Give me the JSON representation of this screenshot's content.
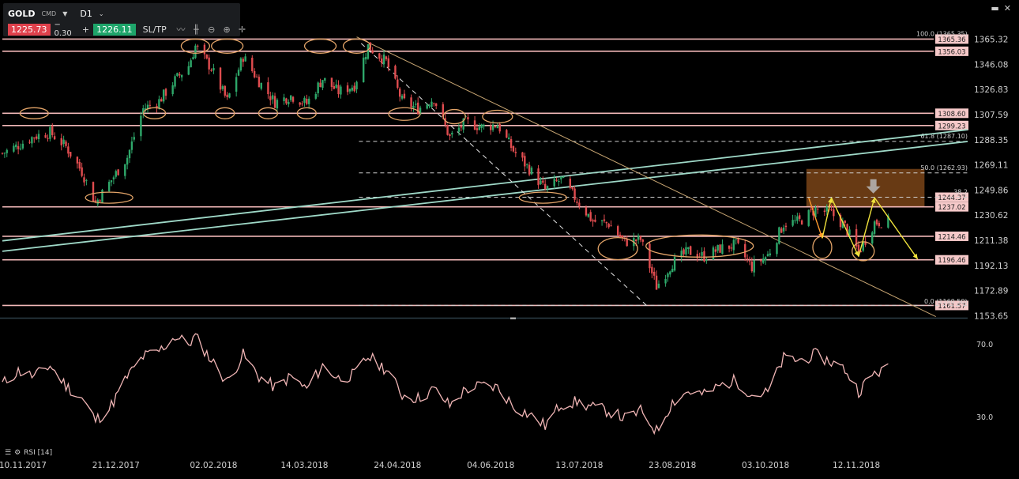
{
  "toolbar": {
    "symbol": "GOLD",
    "symbol_type": "CMD",
    "timeframe": "D1",
    "bid": "1225.73",
    "change_label": "− 0.30",
    "plus": "+",
    "ask": "1226.11",
    "sltp": "SL/TP",
    "tools": [
      "line-chart-icon",
      "candles-icon",
      "zoom-out-icon",
      "zoom-in-icon",
      "crosshair-icon"
    ]
  },
  "window_buttons": [
    "minimize-icon",
    "close-icon"
  ],
  "rsi_panel": {
    "label": "RSI [14]"
  },
  "chart_data": [
    {
      "type": "candlestick",
      "instrument": "GOLD",
      "timeframe": "D1",
      "x_start": "2017-11-01",
      "x_end": "2018-12-31",
      "x_ticks": [
        "10.11.2017",
        "21.12.2017",
        "02.02.2018",
        "14.03.2018",
        "24.04.2018",
        "04.06.2018",
        "13.07.2018",
        "23.08.2018",
        "03.10.2018",
        "12.11.2018"
      ],
      "y_ticks": [
        1365.32,
        1346.08,
        1326.83,
        1307.59,
        1288.35,
        1269.11,
        1249.86,
        1230.62,
        1211.38,
        1192.13,
        1172.89,
        1153.65
      ],
      "ylim": [
        1150,
        1372
      ],
      "approx_close": [
        [
          "2017-11-01",
          1278
        ],
        [
          "2017-11-08",
          1284
        ],
        [
          "2017-11-15",
          1291
        ],
        [
          "2017-11-22",
          1294
        ],
        [
          "2017-11-29",
          1283
        ],
        [
          "2017-12-06",
          1264
        ],
        [
          "2017-12-12",
          1240
        ],
        [
          "2017-12-18",
          1255
        ],
        [
          "2017-12-26",
          1275
        ],
        [
          "2018-01-02",
          1312
        ],
        [
          "2018-01-09",
          1318
        ],
        [
          "2018-01-16",
          1334
        ],
        [
          "2018-01-22",
          1345
        ],
        [
          "2018-01-25",
          1360
        ],
        [
          "2018-02-01",
          1343
        ],
        [
          "2018-02-08",
          1318
        ],
        [
          "2018-02-15",
          1352
        ],
        [
          "2018-02-22",
          1333
        ],
        [
          "2018-03-01",
          1317
        ],
        [
          "2018-03-08",
          1322
        ],
        [
          "2018-03-15",
          1316
        ],
        [
          "2018-03-22",
          1335
        ],
        [
          "2018-03-29",
          1325
        ],
        [
          "2018-04-05",
          1330
        ],
        [
          "2018-04-11",
          1360
        ],
        [
          "2018-04-19",
          1348
        ],
        [
          "2018-04-26",
          1318
        ],
        [
          "2018-05-03",
          1312
        ],
        [
          "2018-05-10",
          1320
        ],
        [
          "2018-05-17",
          1290
        ],
        [
          "2018-05-24",
          1302
        ],
        [
          "2018-05-31",
          1298
        ],
        [
          "2018-06-07",
          1300
        ],
        [
          "2018-06-14",
          1280
        ],
        [
          "2018-06-21",
          1266
        ],
        [
          "2018-06-28",
          1250
        ],
        [
          "2018-07-05",
          1258
        ],
        [
          "2018-07-12",
          1242
        ],
        [
          "2018-07-19",
          1226
        ],
        [
          "2018-07-26",
          1224
        ],
        [
          "2018-08-02",
          1210
        ],
        [
          "2018-08-09",
          1212
        ],
        [
          "2018-08-16",
          1176
        ],
        [
          "2018-08-23",
          1194
        ],
        [
          "2018-08-30",
          1203
        ],
        [
          "2018-09-06",
          1199
        ],
        [
          "2018-09-13",
          1205
        ],
        [
          "2018-09-20",
          1208
        ],
        [
          "2018-09-27",
          1191
        ],
        [
          "2018-10-04",
          1200
        ],
        [
          "2018-10-11",
          1224
        ],
        [
          "2018-10-18",
          1226
        ],
        [
          "2018-10-25",
          1235
        ],
        [
          "2018-11-01",
          1232
        ],
        [
          "2018-11-07",
          1222
        ],
        [
          "2018-11-13",
          1202
        ],
        [
          "2018-11-20",
          1225
        ],
        [
          "2018-11-26",
          1226
        ]
      ],
      "support_resistance_levels": [
        1365.36,
        1356.03,
        1308.6,
        1299.23,
        1237.02,
        1214.46,
        1196.46,
        1161.57
      ],
      "marked_level_labels": [
        "1365.36",
        "1356.03",
        "1308.60",
        "1299.23",
        "1244.37",
        "1237.02",
        "1214.46",
        "1196.46",
        "1161.57"
      ],
      "fibonacci": [
        {
          "label": "100.0 (1365.35)",
          "value": 1365.35
        },
        {
          "label": "61.8 (1287.10)",
          "value": 1287.1
        },
        {
          "label": "50.0 (1262.93)",
          "value": 1262.93
        },
        {
          "label": "38.2",
          "value": 1244.37
        },
        {
          "label": "0.0 (1160.50)",
          "value": 1160.5
        }
      ],
      "trendlines": [
        {
          "from": [
            "2017-11-01",
            1211
          ],
          "to": [
            "2018-12-31",
            1296
          ]
        },
        {
          "from": [
            "2017-11-01",
            1203
          ],
          "to": [
            "2018-12-31",
            1287
          ]
        },
        {
          "from": [
            "2018-04-06",
            1367
          ],
          "to": [
            "2018-12-17",
            1153
          ]
        },
        {
          "from": [
            "2018-04-08",
            1362
          ],
          "to": [
            "2018-08-12",
            1161
          ]
        }
      ],
      "zone": {
        "from": "2018-10-21",
        "to": "2018-12-12",
        "low": 1237,
        "high": 1266
      },
      "colors": {
        "up": "#2ea86a",
        "down": "#e04c4f",
        "level": "#f2b8b8",
        "trend": "#9fd9c8",
        "trend_down": "#c7a572",
        "ellipse": "#e3a468",
        "zone": "#7a4417",
        "arrow": "#f1e33c",
        "arrow_orange": "#ff9a2e"
      }
    },
    {
      "type": "line",
      "name": "RSI [14]",
      "y_ticks": [
        70.0,
        30.0
      ],
      "ylim": [
        15,
        80
      ],
      "values": [
        [
          "2017-11-01",
          48
        ],
        [
          "2017-11-08",
          55
        ],
        [
          "2017-11-15",
          52
        ],
        [
          "2017-11-22",
          58
        ],
        [
          "2017-11-29",
          47
        ],
        [
          "2017-12-06",
          40
        ],
        [
          "2017-12-12",
          28
        ],
        [
          "2017-12-18",
          34
        ],
        [
          "2017-12-26",
          52
        ],
        [
          "2018-01-02",
          63
        ],
        [
          "2018-01-09",
          66
        ],
        [
          "2018-01-16",
          74
        ],
        [
          "2018-01-22",
          70
        ],
        [
          "2018-01-25",
          74
        ],
        [
          "2018-02-01",
          61
        ],
        [
          "2018-02-08",
          49
        ],
        [
          "2018-02-15",
          64
        ],
        [
          "2018-02-22",
          52
        ],
        [
          "2018-03-01",
          46
        ],
        [
          "2018-03-08",
          52
        ],
        [
          "2018-03-15",
          45
        ],
        [
          "2018-03-22",
          58
        ],
        [
          "2018-03-29",
          51
        ],
        [
          "2018-04-05",
          53
        ],
        [
          "2018-04-11",
          63
        ],
        [
          "2018-04-19",
          56
        ],
        [
          "2018-04-26",
          42
        ],
        [
          "2018-05-03",
          40
        ],
        [
          "2018-05-10",
          45
        ],
        [
          "2018-05-17",
          36
        ],
        [
          "2018-05-24",
          45
        ],
        [
          "2018-05-31",
          47
        ],
        [
          "2018-06-07",
          46
        ],
        [
          "2018-06-14",
          36
        ],
        [
          "2018-06-21",
          31
        ],
        [
          "2018-06-28",
          25
        ],
        [
          "2018-07-05",
          37
        ],
        [
          "2018-07-12",
          38
        ],
        [
          "2018-07-19",
          35
        ],
        [
          "2018-07-26",
          33
        ],
        [
          "2018-08-02",
          29
        ],
        [
          "2018-08-09",
          33
        ],
        [
          "2018-08-16",
          22
        ],
        [
          "2018-08-23",
          38
        ],
        [
          "2018-08-30",
          44
        ],
        [
          "2018-09-06",
          42
        ],
        [
          "2018-09-13",
          47
        ],
        [
          "2018-09-20",
          50
        ],
        [
          "2018-09-27",
          42
        ],
        [
          "2018-10-04",
          43
        ],
        [
          "2018-10-11",
          62
        ],
        [
          "2018-10-18",
          61
        ],
        [
          "2018-10-25",
          64
        ],
        [
          "2018-11-01",
          60
        ],
        [
          "2018-11-07",
          56
        ],
        [
          "2018-11-13",
          44
        ],
        [
          "2018-11-20",
          54
        ],
        [
          "2018-11-26",
          56
        ]
      ]
    }
  ]
}
